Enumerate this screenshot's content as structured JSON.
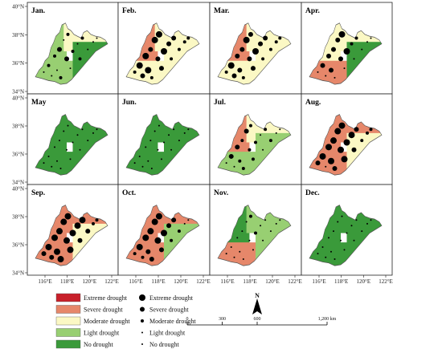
{
  "panels": [
    {
      "month": "Jan.",
      "fill": [
        "light",
        "moderate",
        "light",
        "no"
      ],
      "dots": [
        2,
        2,
        3,
        1,
        2,
        1,
        3,
        2,
        1,
        2,
        1,
        2,
        1,
        2,
        1,
        1,
        1,
        1
      ]
    },
    {
      "month": "Feb.",
      "fill": [
        "severe",
        "moderate",
        "moderate",
        "moderate"
      ],
      "dots": [
        4,
        4,
        3,
        4,
        4,
        4,
        3,
        4,
        3,
        3,
        2,
        2,
        3,
        2,
        2,
        2,
        3,
        2
      ]
    },
    {
      "month": "Mar.",
      "fill": [
        "severe",
        "moderate",
        "moderate",
        "moderate"
      ],
      "dots": [
        4,
        3,
        3,
        4,
        3,
        3,
        3,
        4,
        3,
        3,
        2,
        2,
        3,
        2,
        2,
        2,
        3,
        2
      ]
    },
    {
      "month": "Apr.",
      "fill": [
        "moderate",
        "moderate",
        "severe",
        "no"
      ],
      "dots": [
        3,
        3,
        3,
        3,
        4,
        3,
        3,
        4,
        2,
        2,
        1,
        1,
        1,
        1,
        1,
        1,
        1,
        1
      ]
    },
    {
      "month": "May",
      "fill": [
        "no",
        "no",
        "no",
        "no"
      ],
      "dots": [
        1,
        1,
        1,
        1,
        1,
        1,
        1,
        1,
        1,
        1,
        1,
        1,
        1,
        1,
        1,
        1,
        1,
        1
      ]
    },
    {
      "month": "Jun.",
      "fill": [
        "no",
        "no",
        "no",
        "no"
      ],
      "dots": [
        1,
        1,
        1,
        1,
        1,
        1,
        1,
        1,
        1,
        1,
        1,
        1,
        1,
        1,
        1,
        1,
        1,
        1
      ]
    },
    {
      "month": "Jul.",
      "fill": [
        "severe",
        "moderate",
        "light",
        "light"
      ],
      "dots": [
        3,
        3,
        2,
        3,
        2,
        2,
        2,
        2,
        1,
        2,
        1,
        2,
        2,
        1,
        2,
        1,
        1,
        1
      ]
    },
    {
      "month": "Aug.",
      "fill": [
        "severe",
        "severe",
        "severe",
        "moderate"
      ],
      "dots": [
        4,
        4,
        4,
        4,
        4,
        4,
        4,
        4,
        4,
        3,
        3,
        3,
        4,
        3,
        2,
        2,
        1,
        2
      ]
    },
    {
      "month": "Sep.",
      "fill": [
        "severe",
        "severe",
        "severe",
        "moderate"
      ],
      "dots": [
        4,
        4,
        4,
        4,
        4,
        4,
        4,
        4,
        4,
        4,
        3,
        4,
        4,
        3,
        3,
        2,
        3,
        2
      ]
    },
    {
      "month": "Oct.",
      "fill": [
        "severe",
        "severe",
        "severe",
        "light"
      ],
      "dots": [
        4,
        4,
        4,
        4,
        4,
        3,
        4,
        4,
        3,
        3,
        2,
        3,
        3,
        2,
        2,
        1,
        2,
        1
      ]
    },
    {
      "month": "Nov.",
      "fill": [
        "no",
        "light",
        "severe",
        "light"
      ],
      "dots": [
        1,
        1,
        1,
        1,
        2,
        1,
        1,
        2,
        1,
        1,
        1,
        1,
        1,
        1,
        1,
        1,
        1,
        1
      ]
    },
    {
      "month": "Dec.",
      "fill": [
        "no",
        "no",
        "no",
        "no"
      ],
      "dots": [
        1,
        1,
        1,
        1,
        1,
        1,
        1,
        1,
        1,
        1,
        1,
        1,
        1,
        1,
        1,
        1,
        1,
        1
      ]
    }
  ],
  "lat_labels": [
    "40°N",
    "38°N",
    "36°N",
    "34°N"
  ],
  "lon_labels": [
    "116°E",
    "118°E",
    "120°E",
    "122°E"
  ],
  "classes": [
    {
      "key": "extreme",
      "label": "Extreme drought",
      "color": "#c8202a",
      "dot_label": "Extreme drought"
    },
    {
      "key": "severe",
      "label": "Severe drought",
      "color": "#e6876a",
      "dot_label": "Severe drought"
    },
    {
      "key": "moderate",
      "label": "Moderate drought",
      "color": "#fbf8c4",
      "dot_label": "Moderate drought"
    },
    {
      "key": "light",
      "label": "Light drought",
      "color": "#98cf72",
      "dot_label": "Light drought"
    },
    {
      "key": "no",
      "label": "No drought",
      "color": "#3a9a3a",
      "dot_label": "No drought"
    }
  ],
  "north_label": "N",
  "scale": {
    "labels": [
      "0",
      "300",
      "600",
      "1,200 km"
    ],
    "values_km": [
      0,
      300,
      600,
      1200
    ]
  }
}
